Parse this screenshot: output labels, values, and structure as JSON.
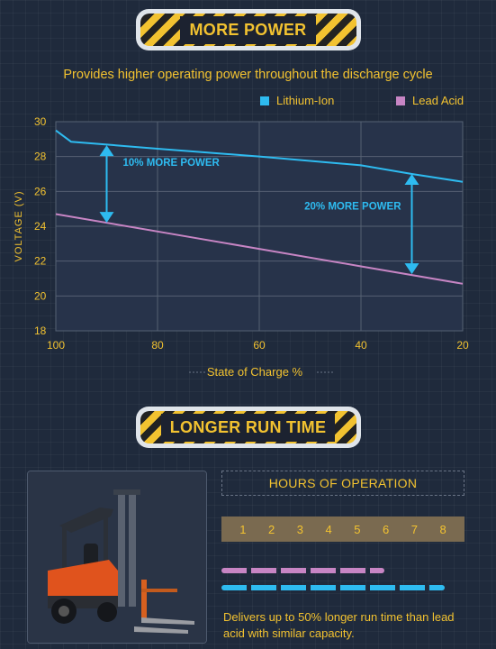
{
  "section1": {
    "banner": "MORE POWER",
    "subtitle": "Provides higher operating power throughout the discharge cycle"
  },
  "legend": [
    {
      "label": "Lithium-Ion",
      "color": "#2ebbf0"
    },
    {
      "label": "Lead Acid",
      "color": "#c785c4"
    }
  ],
  "chart_data": {
    "type": "line",
    "x": [
      100,
      97,
      80,
      60,
      40,
      30,
      20
    ],
    "xlim": [
      100,
      20
    ],
    "ylim": [
      18,
      30
    ],
    "xticks": [
      100,
      80,
      60,
      40,
      20
    ],
    "yticks": [
      18,
      20,
      22,
      24,
      26,
      28,
      30
    ],
    "xlabel": "State of Charge %",
    "ylabel": "VOLTAGE (V)",
    "grid": true,
    "series": [
      {
        "name": "Lithium-Ion",
        "color": "#2ebbf0",
        "x": [
          100,
          97,
          80,
          60,
          40,
          30,
          20
        ],
        "values": [
          29.5,
          28.85,
          28.45,
          28.0,
          27.5,
          27.0,
          26.55
        ]
      },
      {
        "name": "Lead Acid",
        "color": "#c785c4",
        "x": [
          100,
          80,
          60,
          40,
          20
        ],
        "values": [
          24.7,
          23.7,
          22.7,
          21.7,
          20.7
        ]
      }
    ],
    "annotations": [
      {
        "text": "10% MORE POWER",
        "x": 90,
        "from": 24.2,
        "to": 28.65
      },
      {
        "text": "20% MORE POWER",
        "x": 30,
        "from": 21.25,
        "to": 27.0
      }
    ]
  },
  "section2": {
    "banner": "LONGER RUN TIME",
    "hours_title": "HOURS OF OPERATION",
    "hours": [
      "1",
      "2",
      "3",
      "4",
      "5",
      "6",
      "7",
      "8"
    ],
    "description": "Delivers up to 50% longer run time than lead acid with similar capacity."
  },
  "runtime": [
    {
      "name": "Lead Acid",
      "color": "#c785c4",
      "fraction": 0.67
    },
    {
      "name": "Lithium-Ion",
      "color": "#2ebbf0",
      "fraction": 0.92
    }
  ]
}
